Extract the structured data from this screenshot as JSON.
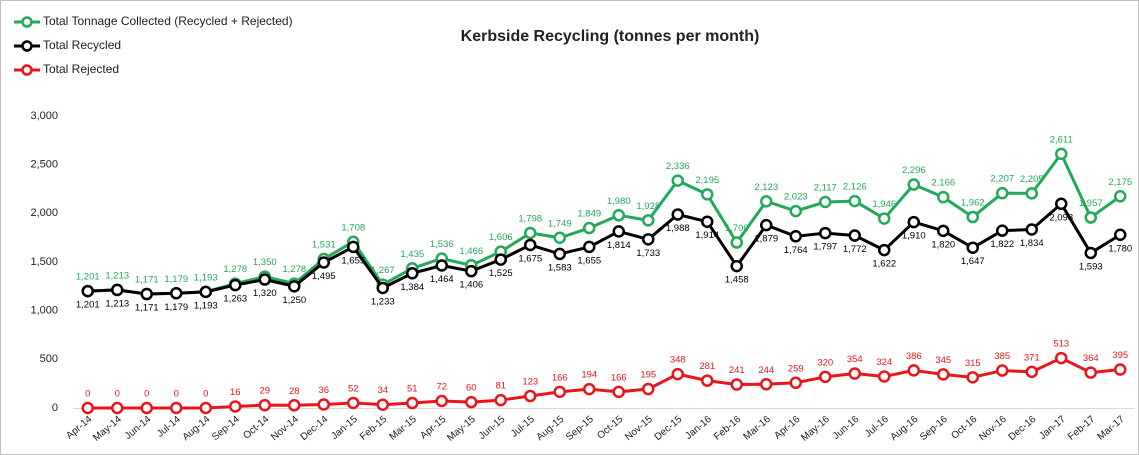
{
  "chart_data": {
    "type": "line",
    "title": "Kerbside Recycling (tonnes per month)",
    "categories": [
      "Apr-14",
      "May-14",
      "Jun-14",
      "Jul-14",
      "Aug-14",
      "Sep-14",
      "Oct-14",
      "Nov-14",
      "Dec-14",
      "Jan-15",
      "Feb-15",
      "Mar-15",
      "Apr-15",
      "May-15",
      "Jun-15",
      "Jul-15",
      "Aug-15",
      "Sep-15",
      "Oct-15",
      "Nov-15",
      "Dec-15",
      "Jan-16",
      "Feb-16",
      "Mar-16",
      "Apr-16",
      "May-16",
      "Jun-16",
      "Jul-16",
      "Aug-16",
      "Sep-16",
      "Oct-16",
      "Nov-16",
      "Dec-16",
      "Jan-17",
      "Feb-17",
      "Mar-17"
    ],
    "series": [
      {
        "name": "Total Tonnage Collected (Recycled + Rejected)",
        "color": "#22a95a",
        "values": [
          1201,
          1213,
          1171,
          1179,
          1193,
          1278,
          1350,
          1278,
          1531,
          1708,
          1267,
          1435,
          1536,
          1466,
          1606,
          1798,
          1749,
          1849,
          1980,
          1928,
          2336,
          2195,
          1700,
          2123,
          2023,
          2117,
          2126,
          1946,
          2296,
          2166,
          1962,
          2207,
          2205,
          2611,
          1957,
          2175
        ],
        "value_labels": [
          "1,201",
          "1,213",
          "1,171",
          "1,179",
          "1,193",
          "1,278",
          "1,350",
          "1,278",
          "1,531",
          "1,708",
          "1,267",
          "1,435",
          "1,536",
          "1,466",
          "1,606",
          "1,798",
          "1,749",
          "1,849",
          "1,980",
          "1,928",
          "2,336",
          "2,195",
          "1,700",
          "2,123",
          "2,023",
          "2,117",
          "2,126",
          "1,946",
          "2,296",
          "2,166",
          "1,962",
          "2,207",
          "2,205",
          "2,611",
          "1,957",
          "2,175"
        ]
      },
      {
        "name": "Total Recycled",
        "color": "#000000",
        "values": [
          1201,
          1213,
          1171,
          1179,
          1193,
          1263,
          1320,
          1250,
          1495,
          1655,
          1233,
          1384,
          1464,
          1406,
          1525,
          1675,
          1583,
          1655,
          1814,
          1733,
          1988,
          1914,
          1458,
          1879,
          1764,
          1797,
          1772,
          1622,
          1910,
          1820,
          1647,
          1822,
          1834,
          2098,
          1593,
          1780
        ],
        "value_labels": [
          "1,201",
          "1,213",
          "1,171",
          "1,179",
          "1,193",
          "1,263",
          "1,320",
          "1,250",
          "1,495",
          "1,655",
          "1,233",
          "1,384",
          "1,464",
          "1,406",
          "1,525",
          "1,675",
          "1,583",
          "1,655",
          "1,814",
          "1,733",
          "1,988",
          "1,914",
          "1,458",
          "1,879",
          "1,764",
          "1,797",
          "1,772",
          "1,622",
          "1,910",
          "1,820",
          "1,647",
          "1,822",
          "1,834",
          "2,098",
          "1,593",
          "1,780"
        ]
      },
      {
        "name": "Total Rejected",
        "color": "#e8161b",
        "values": [
          0,
          0,
          0,
          0,
          0,
          16,
          29,
          28,
          36,
          52,
          34,
          51,
          72,
          60,
          81,
          123,
          166,
          194,
          166,
          195,
          348,
          281,
          241,
          244,
          259,
          320,
          354,
          324,
          386,
          345,
          315,
          385,
          371,
          513,
          364,
          395
        ]
      }
    ],
    "ylim": [
      0,
      3000
    ],
    "yticks": [
      0,
      500,
      {
        "value": 1000,
        "label": "1,000"
      },
      {
        "value": 1500,
        "label": "1,500"
      },
      {
        "value": 2000,
        "label": "2,000"
      },
      {
        "value": 2500,
        "label": "2,500"
      },
      {
        "value": 3000,
        "label": "3,000"
      }
    ],
    "grid": false,
    "legend": "top-left"
  }
}
